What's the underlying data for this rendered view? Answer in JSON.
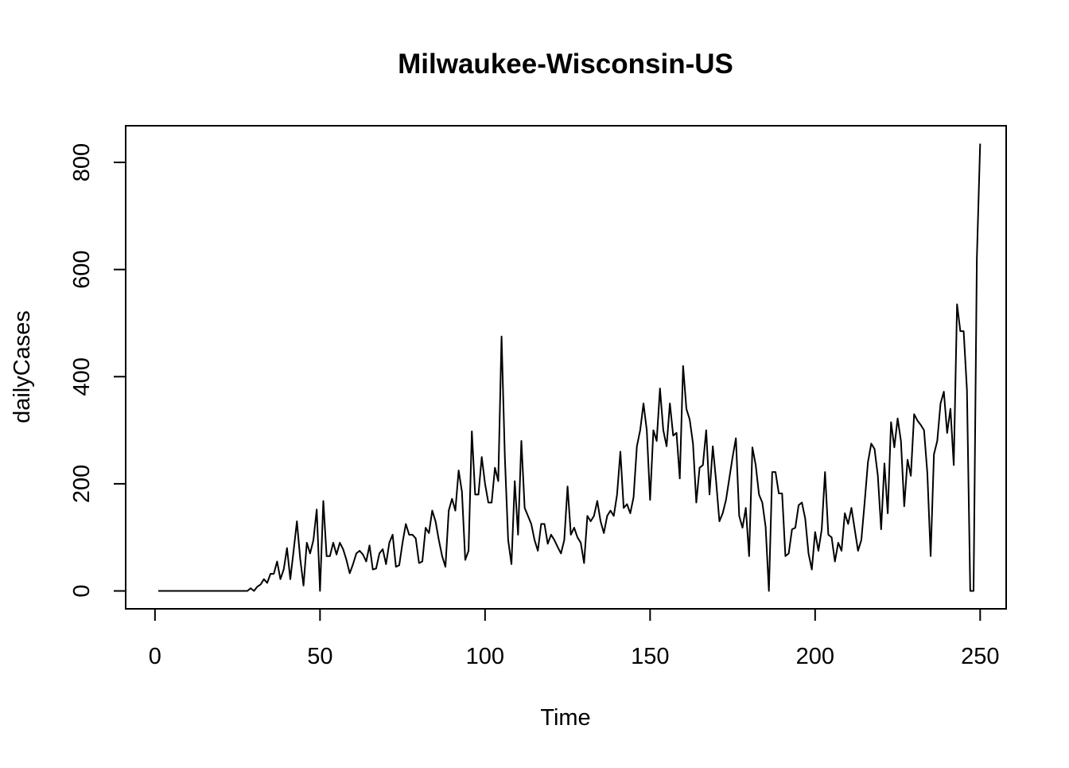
{
  "chart_data": {
    "type": "line",
    "title": "Milwaukee-Wisconsin-US",
    "xlabel": "Time",
    "ylabel": "dailyCases",
    "xlim": [
      1,
      248
    ],
    "ylim": [
      0,
      835
    ],
    "x_ticks": [
      0,
      50,
      100,
      150,
      200,
      250
    ],
    "x_tick_labels": [
      "0",
      "50",
      "100",
      "150",
      "200",
      "250"
    ],
    "y_ticks": [
      0,
      200,
      400,
      600,
      800
    ],
    "y_tick_labels": [
      "0",
      "200",
      "400",
      "600",
      "800"
    ],
    "grid": false,
    "legend": "none",
    "line_color": "#000000",
    "series": [
      {
        "x_start": 1,
        "values": [
          0,
          0,
          0,
          0,
          0,
          0,
          0,
          0,
          0,
          0,
          0,
          0,
          0,
          0,
          0,
          0,
          0,
          0,
          0,
          0,
          0,
          0,
          0,
          0,
          0,
          0,
          0,
          0,
          5,
          0,
          8,
          12,
          22,
          15,
          32,
          32,
          55,
          22,
          40,
          80,
          22,
          75,
          130,
          60,
          10,
          90,
          70,
          95,
          152,
          0,
          168,
          65,
          65,
          90,
          68,
          90,
          78,
          58,
          33,
          50,
          70,
          75,
          68,
          55,
          85,
          40,
          42,
          70,
          78,
          50,
          90,
          105,
          45,
          48,
          90,
          125,
          105,
          105,
          98,
          52,
          55,
          118,
          108,
          150,
          130,
          95,
          65,
          45,
          150,
          172,
          150,
          225,
          185,
          58,
          75,
          298,
          180,
          180,
          250,
          200,
          165,
          165,
          230,
          205,
          475,
          250,
          95,
          50,
          205,
          105,
          280,
          155,
          140,
          125,
          95,
          75,
          125,
          125,
          88,
          105,
          95,
          82,
          70,
          95,
          195,
          105,
          118,
          100,
          90,
          52,
          140,
          130,
          140,
          168,
          130,
          108,
          140,
          150,
          140,
          180,
          260,
          155,
          162,
          145,
          175,
          270,
          300,
          350,
          300,
          170,
          300,
          280,
          378,
          300,
          270,
          350,
          290,
          295,
          210,
          420,
          340,
          320,
          275,
          165,
          230,
          235,
          300,
          180,
          270,
          205,
          130,
          145,
          170,
          210,
          250,
          285,
          140,
          118,
          155,
          65,
          268,
          235,
          180,
          165,
          120,
          0,
          222,
          222,
          182,
          182,
          65,
          70,
          115,
          118,
          160,
          165,
          135,
          70,
          40,
          110,
          75,
          115,
          222,
          105,
          100,
          55,
          90,
          75,
          145,
          125,
          155,
          115,
          75,
          95,
          165,
          240,
          275,
          265,
          215,
          115,
          238,
          145,
          315,
          268,
          322,
          280,
          158,
          245,
          215,
          330,
          318,
          310,
          300,
          220,
          65,
          255,
          280,
          350,
          372,
          295,
          340,
          235,
          535,
          485,
          485,
          375,
          0,
          0,
          620,
          835
        ]
      }
    ]
  }
}
